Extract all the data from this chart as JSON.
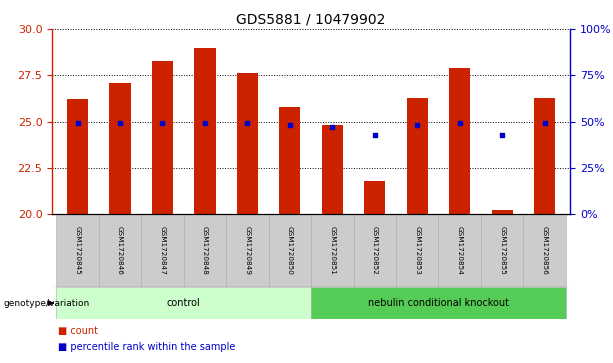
{
  "title": "GDS5881 / 10479902",
  "samples": [
    "GSM1720845",
    "GSM1720846",
    "GSM1720847",
    "GSM1720848",
    "GSM1720849",
    "GSM1720850",
    "GSM1720851",
    "GSM1720852",
    "GSM1720853",
    "GSM1720854",
    "GSM1720855",
    "GSM1720856"
  ],
  "bar_values": [
    26.2,
    27.1,
    28.3,
    29.0,
    27.6,
    25.8,
    24.8,
    21.8,
    26.3,
    27.9,
    20.2,
    26.3
  ],
  "dot_values": [
    49,
    49,
    49,
    49,
    49,
    48,
    47,
    43,
    48,
    49,
    43,
    49
  ],
  "bar_color": "#cc2200",
  "dot_color": "#0000cc",
  "ylim_left": [
    20,
    30
  ],
  "ylim_right": [
    0,
    100
  ],
  "yticks_left": [
    20,
    22.5,
    25,
    27.5,
    30
  ],
  "yticks_right": [
    0,
    25,
    50,
    75,
    100
  ],
  "yticklabels_right": [
    "0%",
    "25%",
    "50%",
    "75%",
    "100%"
  ],
  "groups": [
    {
      "label": "control",
      "start": 0,
      "end": 5,
      "color": "#ccffcc"
    },
    {
      "label": "nebulin conditional knockout",
      "start": 6,
      "end": 11,
      "color": "#55cc55"
    }
  ],
  "group_label_prefix": "genotype/variation",
  "legend_items": [
    {
      "color": "#cc2200",
      "label": "count"
    },
    {
      "color": "#0000cc",
      "label": "percentile rank within the sample"
    }
  ],
  "bar_width": 0.5,
  "tick_label_area_color": "#cccccc",
  "right_axis_color": "#0000cc",
  "left_axis_color": "#cc2200",
  "title_fontsize": 10
}
